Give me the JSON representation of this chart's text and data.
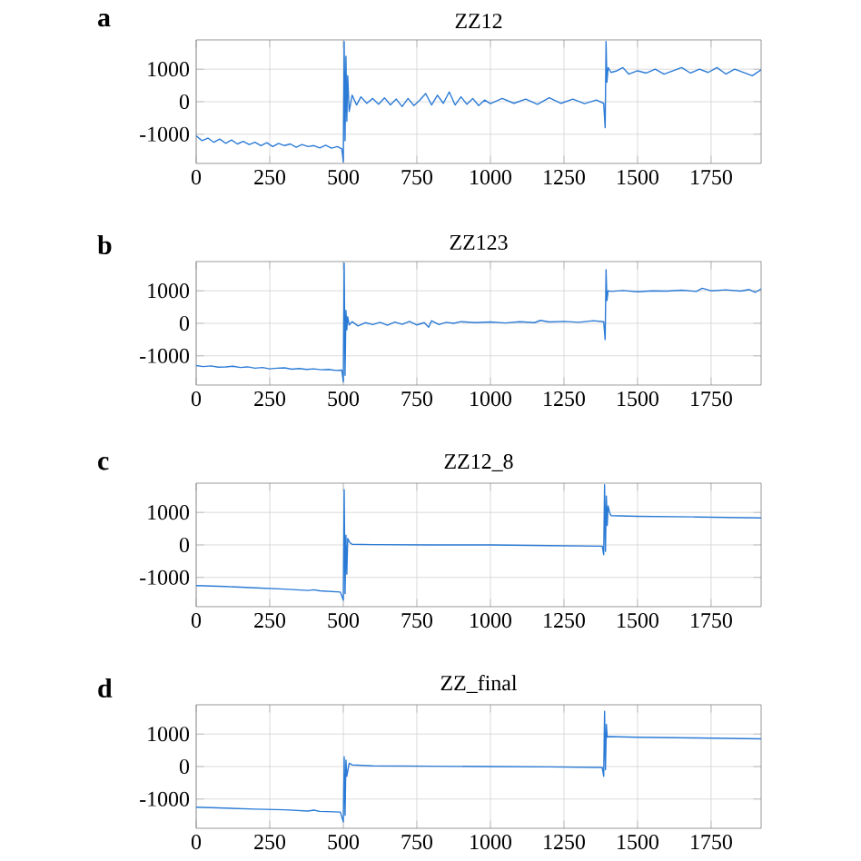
{
  "chart_data": [
    {
      "type": "line",
      "title": "ZZ12",
      "annotations": [
        "a"
      ],
      "xlim": [
        0,
        1920
      ],
      "ylim": [
        -1900,
        1900
      ],
      "xticks": [
        0,
        250,
        500,
        750,
        1000,
        1250,
        1500,
        1750
      ],
      "yticks": [
        -1000,
        0,
        1000
      ],
      "grid": true,
      "series": [
        {
          "color": "#2b7bd6",
          "x": [
            0,
            20,
            40,
            60,
            80,
            100,
            120,
            140,
            160,
            180,
            200,
            220,
            240,
            260,
            280,
            300,
            320,
            340,
            360,
            380,
            400,
            420,
            440,
            460,
            480,
            495,
            500,
            503,
            506,
            509,
            512,
            515,
            520,
            530,
            545,
            560,
            580,
            600,
            620,
            640,
            660,
            680,
            700,
            720,
            740,
            760,
            780,
            800,
            820,
            840,
            860,
            880,
            900,
            920,
            940,
            960,
            980,
            1000,
            1040,
            1080,
            1120,
            1160,
            1200,
            1240,
            1280,
            1320,
            1360,
            1385,
            1390,
            1393,
            1396,
            1400,
            1410,
            1430,
            1450,
            1470,
            1500,
            1530,
            1560,
            1590,
            1620,
            1650,
            1680,
            1710,
            1740,
            1770,
            1800,
            1830,
            1860,
            1890,
            1920
          ],
          "values": [
            -1050,
            -1200,
            -1120,
            -1250,
            -1150,
            -1280,
            -1180,
            -1300,
            -1220,
            -1320,
            -1250,
            -1350,
            -1260,
            -1380,
            -1280,
            -1350,
            -1300,
            -1400,
            -1320,
            -1380,
            -1350,
            -1420,
            -1340,
            -1430,
            -1380,
            -1450,
            -1850,
            1850,
            -1200,
            1400,
            -600,
            800,
            -300,
            200,
            -100,
            150,
            -50,
            100,
            -80,
            120,
            -100,
            80,
            -150,
            100,
            -120,
            50,
            250,
            -100,
            200,
            -50,
            300,
            -100,
            150,
            -80,
            100,
            -120,
            50,
            -60,
            100,
            -50,
            80,
            -80,
            120,
            -50,
            80,
            -60,
            50,
            -50,
            -800,
            1850,
            600,
            1050,
            900,
            950,
            1050,
            850,
            950,
            880,
            1000,
            850,
            950,
            1050,
            880,
            1000,
            900,
            1050,
            850,
            1000,
            900,
            800,
            980
          ]
        }
      ]
    },
    {
      "type": "line",
      "title": "ZZ123",
      "annotations": [
        "b"
      ],
      "xlim": [
        0,
        1920
      ],
      "ylim": [
        -1900,
        1900
      ],
      "xticks": [
        0,
        250,
        500,
        750,
        1000,
        1250,
        1500,
        1750
      ],
      "yticks": [
        -1000,
        0,
        1000
      ],
      "grid": true,
      "series": [
        {
          "color": "#2b7bd6",
          "x": [
            0,
            25,
            50,
            75,
            100,
            125,
            150,
            175,
            200,
            225,
            250,
            275,
            300,
            325,
            350,
            375,
            400,
            425,
            450,
            475,
            495,
            500,
            503,
            506,
            509,
            512,
            515,
            520,
            530,
            550,
            575,
            600,
            625,
            650,
            675,
            700,
            725,
            750,
            775,
            790,
            800,
            825,
            850,
            875,
            900,
            950,
            1000,
            1050,
            1100,
            1150,
            1170,
            1200,
            1250,
            1300,
            1350,
            1385,
            1390,
            1393,
            1396,
            1400,
            1410,
            1450,
            1500,
            1550,
            1600,
            1650,
            1700,
            1720,
            1750,
            1800,
            1850,
            1880,
            1900,
            1920
          ],
          "values": [
            -1300,
            -1330,
            -1310,
            -1350,
            -1340,
            -1320,
            -1360,
            -1340,
            -1380,
            -1360,
            -1400,
            -1380,
            -1370,
            -1410,
            -1390,
            -1420,
            -1400,
            -1430,
            -1420,
            -1450,
            -1440,
            -1800,
            1850,
            -1600,
            400,
            -200,
            200,
            -50,
            50,
            -80,
            20,
            -40,
            30,
            -60,
            40,
            -30,
            60,
            -50,
            20,
            -120,
            80,
            -40,
            30,
            0,
            50,
            20,
            40,
            10,
            50,
            20,
            90,
            40,
            60,
            30,
            80,
            50,
            -500,
            1650,
            700,
            1000,
            980,
            1010,
            970,
            1000,
            990,
            1020,
            980,
            1080,
            1000,
            1030,
            990,
            1040,
            950,
            1060
          ]
        }
      ]
    },
    {
      "type": "line",
      "title": "ZZ12_8",
      "annotations": [
        "c"
      ],
      "xlim": [
        0,
        1920
      ],
      "ylim": [
        -1900,
        1900
      ],
      "xticks": [
        0,
        250,
        500,
        750,
        1000,
        1250,
        1500,
        1750
      ],
      "yticks": [
        -1000,
        0,
        1000
      ],
      "grid": true,
      "series": [
        {
          "color": "#2b7bd6",
          "x": [
            0,
            100,
            200,
            300,
            380,
            400,
            420,
            490,
            500,
            503,
            506,
            509,
            512,
            515,
            520,
            525,
            530,
            600,
            800,
            1000,
            1200,
            1380,
            1385,
            1388,
            1391,
            1394,
            1397,
            1400,
            1405,
            1410,
            1500,
            1700,
            1920
          ],
          "values": [
            -1250,
            -1280,
            -1320,
            -1360,
            -1400,
            -1380,
            -1410,
            -1450,
            -1700,
            1700,
            -1500,
            300,
            -900,
            200,
            100,
            50,
            20,
            10,
            0,
            0,
            -20,
            -40,
            -300,
            1850,
            -200,
            1500,
            600,
            1200,
            1000,
            900,
            880,
            860,
            830
          ]
        }
      ]
    },
    {
      "type": "line",
      "title": "ZZ_final",
      "annotations": [
        "d"
      ],
      "xlim": [
        0,
        1920
      ],
      "ylim": [
        -1900,
        1900
      ],
      "xticks": [
        0,
        250,
        500,
        750,
        1000,
        1250,
        1500,
        1750
      ],
      "yticks": [
        -1000,
        0,
        1000
      ],
      "grid": true,
      "series": [
        {
          "color": "#2b7bd6",
          "x": [
            0,
            100,
            200,
            300,
            380,
            400,
            420,
            490,
            500,
            503,
            506,
            509,
            512,
            520,
            530,
            600,
            800,
            1000,
            1200,
            1380,
            1385,
            1388,
            1391,
            1394,
            1397,
            1400,
            1500,
            1700,
            1920
          ],
          "values": [
            -1250,
            -1280,
            -1310,
            -1330,
            -1370,
            -1340,
            -1380,
            -1400,
            -1700,
            300,
            -1500,
            200,
            -300,
            100,
            50,
            20,
            10,
            0,
            -10,
            -30,
            -300,
            1700,
            -100,
            1300,
            900,
            920,
            900,
            880,
            850
          ]
        }
      ]
    }
  ]
}
